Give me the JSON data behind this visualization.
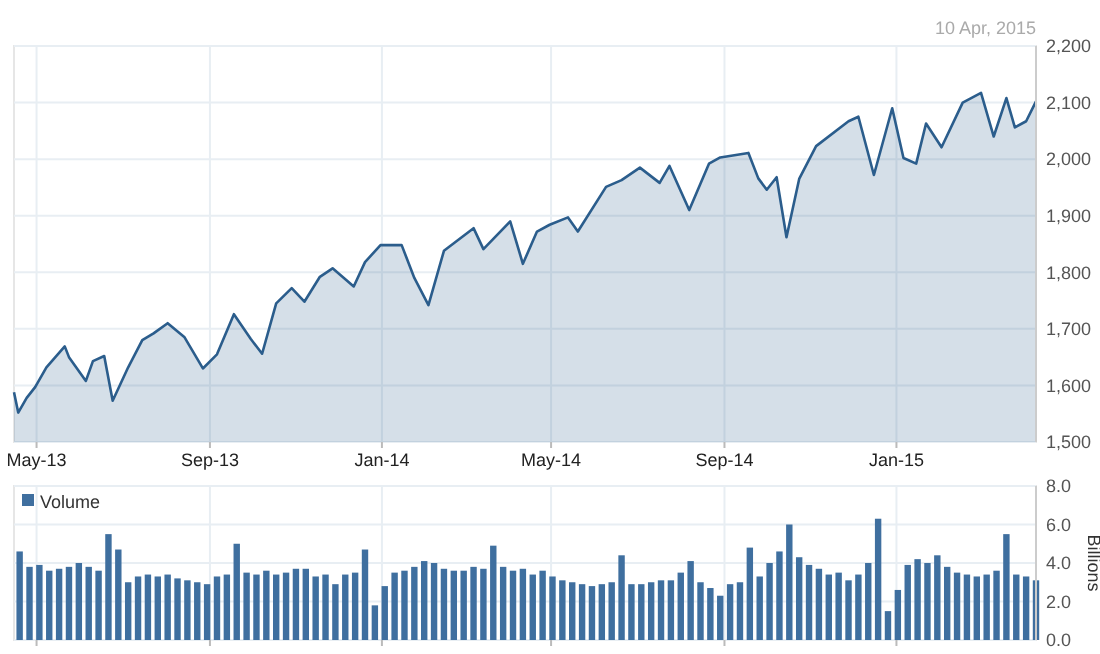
{
  "chart_data": [
    {
      "type": "area",
      "annotations": [
        "10 Apr, 2015"
      ],
      "xlim": [
        "2013-04-15",
        "2015-04-10"
      ],
      "xticks": [
        {
          "value": "2013-05-01",
          "label": "May-13"
        },
        {
          "value": "2013-09-01",
          "label": "Sep-13"
        },
        {
          "value": "2014-01-01",
          "label": "Jan-14"
        },
        {
          "value": "2014-05-01",
          "label": "May-14"
        },
        {
          "value": "2014-09-01",
          "label": "Sep-14"
        },
        {
          "value": "2015-01-01",
          "label": "Jan-15"
        }
      ],
      "ylim": [
        1500,
        2200
      ],
      "yticks": [
        {
          "value": 1500,
          "label": "1,500"
        },
        {
          "value": 1600,
          "label": "1,600"
        },
        {
          "value": 1700,
          "label": "1,700"
        },
        {
          "value": 1800,
          "label": "1,800"
        },
        {
          "value": 1900,
          "label": "1,900"
        },
        {
          "value": 2000,
          "label": "2,000"
        },
        {
          "value": 2100,
          "label": "2,100"
        },
        {
          "value": 2200,
          "label": "2,200"
        }
      ],
      "grid": true,
      "legend": false,
      "series": [
        {
          "color": "#2b5d8c",
          "x": [
            "2013-04-15",
            "2013-04-18",
            "2013-04-24",
            "2013-04-30",
            "2013-05-08",
            "2013-05-21",
            "2013-05-24",
            "2013-06-05",
            "2013-06-10",
            "2013-06-18",
            "2013-06-24",
            "2013-07-05",
            "2013-07-15",
            "2013-07-23",
            "2013-08-02",
            "2013-08-14",
            "2013-08-27",
            "2013-09-06",
            "2013-09-18",
            "2013-09-30",
            "2013-10-08",
            "2013-10-18",
            "2013-10-29",
            "2013-11-07",
            "2013-11-18",
            "2013-11-27",
            "2013-12-12",
            "2013-12-20",
            "2013-12-31",
            "2014-01-15",
            "2014-01-24",
            "2014-02-03",
            "2014-02-14",
            "2014-03-07",
            "2014-03-14",
            "2014-04-02",
            "2014-04-11",
            "2014-04-21",
            "2014-04-30",
            "2014-05-13",
            "2014-05-20",
            "2014-06-09",
            "2014-06-20",
            "2014-07-03",
            "2014-07-17",
            "2014-07-24",
            "2014-08-07",
            "2014-08-21",
            "2014-08-29",
            "2014-09-18",
            "2014-09-25",
            "2014-10-01",
            "2014-10-08",
            "2014-10-15",
            "2014-10-24",
            "2014-11-05",
            "2014-11-28",
            "2014-12-05",
            "2014-12-16",
            "2014-12-29",
            "2015-01-06",
            "2015-01-15",
            "2015-01-22",
            "2015-02-02",
            "2015-02-17",
            "2015-03-02",
            "2015-03-11",
            "2015-03-20",
            "2015-03-26",
            "2015-04-03",
            "2015-04-10"
          ],
          "values": [
            1588,
            1552,
            1578,
            1597,
            1632,
            1669,
            1650,
            1608,
            1643,
            1652,
            1573,
            1632,
            1680,
            1692,
            1710,
            1685,
            1630,
            1655,
            1726,
            1682,
            1656,
            1745,
            1772,
            1748,
            1792,
            1807,
            1775,
            1818,
            1848,
            1848,
            1790,
            1742,
            1838,
            1878,
            1841,
            1890,
            1815,
            1872,
            1884,
            1897,
            1872,
            1951,
            1963,
            1985,
            1958,
            1988,
            1910,
            1992,
            2003,
            2011,
            1966,
            1946,
            1968,
            1862,
            1965,
            2023,
            2067,
            2075,
            1972,
            2090,
            2002,
            1992,
            2063,
            2021,
            2100,
            2117,
            2040,
            2108,
            2056,
            2067,
            2102
          ]
        }
      ]
    },
    {
      "type": "bar",
      "ylabel": "Billions",
      "xlim": [
        "2013-04-15",
        "2015-04-10"
      ],
      "xticks": [
        {
          "value": "2013-05-01",
          "label": null
        },
        {
          "value": "2013-09-01",
          "label": null
        },
        {
          "value": "2014-01-01",
          "label": null
        },
        {
          "value": "2014-05-01",
          "label": null
        },
        {
          "value": "2014-09-01",
          "label": null
        },
        {
          "value": "2015-01-01",
          "label": null
        }
      ],
      "ylim": [
        0,
        8
      ],
      "yticks": [
        {
          "value": 0,
          "label": "0.0"
        },
        {
          "value": 2,
          "label": "2.0"
        },
        {
          "value": 4,
          "label": "4.0"
        },
        {
          "value": 6,
          "label": "6.0"
        },
        {
          "value": 8,
          "label": "8.0"
        }
      ],
      "grid": true,
      "legend": "top left",
      "tick_labels": "y",
      "series": [
        {
          "name": "Volume",
          "color": "#3f6f9f",
          "x": [
            "2013-04-19",
            "2013-04-26",
            "2013-05-03",
            "2013-05-10",
            "2013-05-17",
            "2013-05-24",
            "2013-05-31",
            "2013-06-07",
            "2013-06-14",
            "2013-06-21",
            "2013-06-28",
            "2013-07-05",
            "2013-07-12",
            "2013-07-19",
            "2013-07-26",
            "2013-08-02",
            "2013-08-09",
            "2013-08-16",
            "2013-08-23",
            "2013-08-30",
            "2013-09-06",
            "2013-09-13",
            "2013-09-20",
            "2013-09-27",
            "2013-10-04",
            "2013-10-11",
            "2013-10-18",
            "2013-10-25",
            "2013-11-01",
            "2013-11-08",
            "2013-11-15",
            "2013-11-22",
            "2013-11-29",
            "2013-12-06",
            "2013-12-13",
            "2013-12-20",
            "2013-12-27",
            "2014-01-03",
            "2014-01-10",
            "2014-01-17",
            "2014-01-24",
            "2014-01-31",
            "2014-02-07",
            "2014-02-14",
            "2014-02-21",
            "2014-02-28",
            "2014-03-07",
            "2014-03-14",
            "2014-03-21",
            "2014-03-28",
            "2014-04-04",
            "2014-04-11",
            "2014-04-18",
            "2014-04-25",
            "2014-05-02",
            "2014-05-09",
            "2014-05-16",
            "2014-05-23",
            "2014-05-30",
            "2014-06-06",
            "2014-06-13",
            "2014-06-20",
            "2014-06-27",
            "2014-07-04",
            "2014-07-11",
            "2014-07-18",
            "2014-07-25",
            "2014-08-01",
            "2014-08-08",
            "2014-08-15",
            "2014-08-22",
            "2014-08-29",
            "2014-09-05",
            "2014-09-12",
            "2014-09-19",
            "2014-09-26",
            "2014-10-03",
            "2014-10-10",
            "2014-10-17",
            "2014-10-24",
            "2014-10-31",
            "2014-11-07",
            "2014-11-14",
            "2014-11-21",
            "2014-11-28",
            "2014-12-05",
            "2014-12-12",
            "2014-12-19",
            "2014-12-26",
            "2015-01-02",
            "2015-01-09",
            "2015-01-16",
            "2015-01-23",
            "2015-01-30",
            "2015-02-06",
            "2015-02-13",
            "2015-02-20",
            "2015-02-27",
            "2015-03-06",
            "2015-03-13",
            "2015-03-20",
            "2015-03-27",
            "2015-04-03",
            "2015-04-10"
          ],
          "values": [
            4.6,
            3.8,
            3.9,
            3.6,
            3.7,
            3.8,
            4.0,
            3.8,
            3.6,
            5.5,
            4.7,
            3.0,
            3.3,
            3.4,
            3.3,
            3.4,
            3.2,
            3.1,
            3.0,
            2.9,
            3.3,
            3.4,
            5.0,
            3.5,
            3.4,
            3.6,
            3.4,
            3.5,
            3.7,
            3.7,
            3.3,
            3.4,
            2.9,
            3.4,
            3.5,
            4.7,
            1.8,
            2.8,
            3.5,
            3.6,
            3.8,
            4.1,
            4.0,
            3.7,
            3.6,
            3.6,
            3.8,
            3.7,
            4.9,
            3.8,
            3.6,
            3.7,
            3.4,
            3.6,
            3.3,
            3.1,
            3.0,
            2.9,
            2.8,
            2.9,
            3.0,
            4.4,
            2.9,
            2.9,
            3.0,
            3.1,
            3.1,
            3.5,
            4.1,
            3.0,
            2.7,
            2.3,
            2.9,
            3.0,
            4.8,
            3.3,
            4.0,
            4.6,
            6.0,
            4.3,
            3.9,
            3.7,
            3.4,
            3.5,
            3.1,
            3.4,
            4.0,
            6.3,
            1.5,
            2.6,
            3.9,
            4.2,
            4.0,
            4.4,
            3.8,
            3.5,
            3.4,
            3.3,
            3.4,
            3.6,
            5.5,
            3.4,
            3.3,
            3.1
          ]
        }
      ]
    }
  ]
}
